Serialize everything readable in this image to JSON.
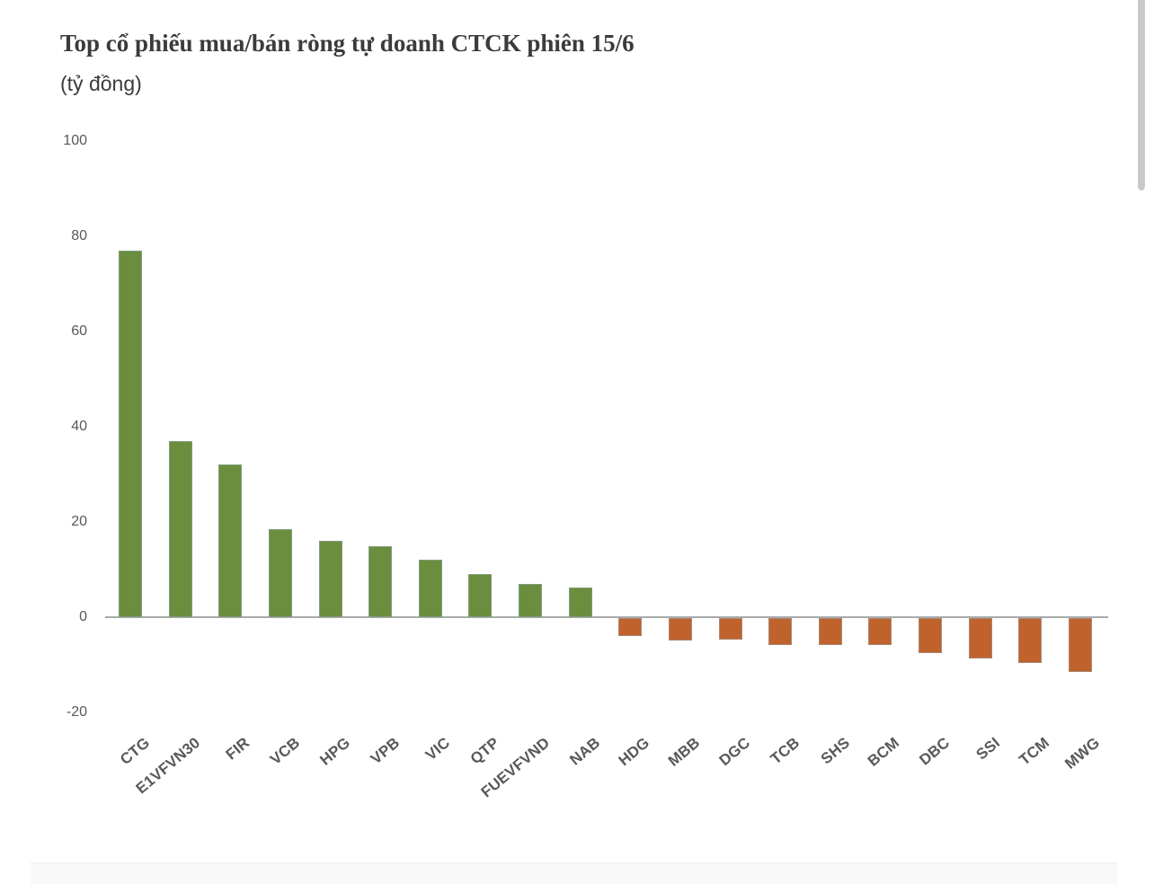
{
  "chart_data": {
    "type": "bar",
    "title": "Top cổ phiếu mua/bán ròng tự doanh CTCK phiên 15/6",
    "subtitle": "(tỷ đồng)",
    "unit": "tỷ đồng",
    "categories": [
      "CTG",
      "E1VFVN30",
      "FIR",
      "VCB",
      "HPG",
      "VPB",
      "VIC",
      "QTP",
      "FUEVFVND",
      "NAB",
      "HDG",
      "MBB",
      "DGC",
      "TCB",
      "SHS",
      "BCM",
      "DBC",
      "SSI",
      "TCM",
      "MWG"
    ],
    "values": [
      77,
      37,
      32,
      18.5,
      16,
      15,
      12,
      9,
      7,
      6.2,
      -3.8,
      -4.7,
      -4.6,
      -5.7,
      -5.7,
      -5.7,
      -7.3,
      -8.4,
      -9.5,
      -11.4
    ],
    "y_ticks": [
      100,
      80,
      60,
      40,
      20,
      0,
      -20
    ],
    "ylim": [
      -20,
      100
    ],
    "grid": false,
    "legend": false,
    "xlabel": "",
    "ylabel": "",
    "positive_color": "#6a8e3d",
    "negative_color": "#c0622b",
    "axis_color": "#a9a9a9",
    "tick_text_color": "#595959"
  }
}
